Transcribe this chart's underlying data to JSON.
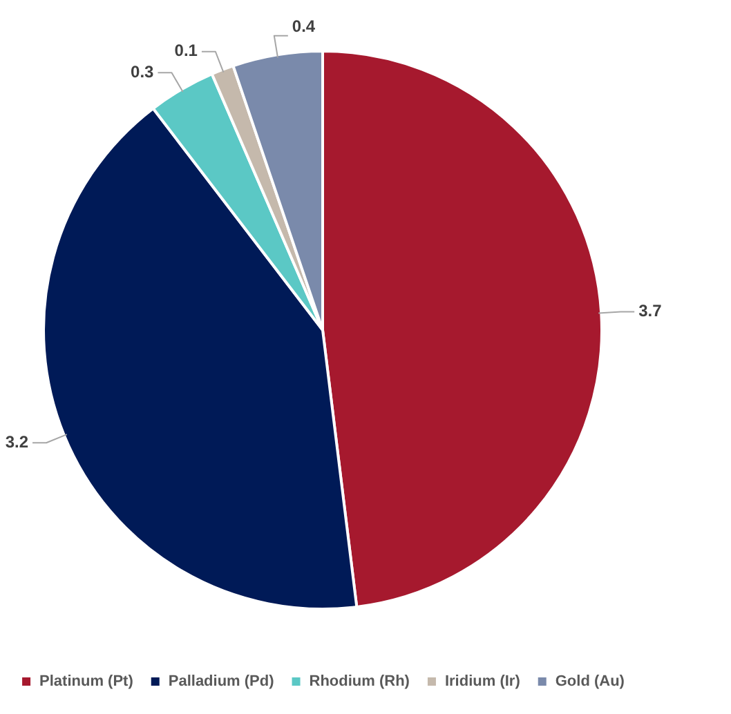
{
  "chart_data": {
    "type": "pie",
    "categories": [
      "Platinum (Pt)",
      "Palladium (Pd)",
      "Rhodium (Rh)",
      "Iridium (Ir)",
      "Gold (Au)"
    ],
    "values": [
      3.7,
      3.2,
      0.3,
      0.1,
      0.4
    ],
    "colors": [
      "#a6192e",
      "#001a57",
      "#5bc8c5",
      "#c5b9ac",
      "#7a8aab"
    ],
    "data_labels": true,
    "legend": "bottom"
  }
}
